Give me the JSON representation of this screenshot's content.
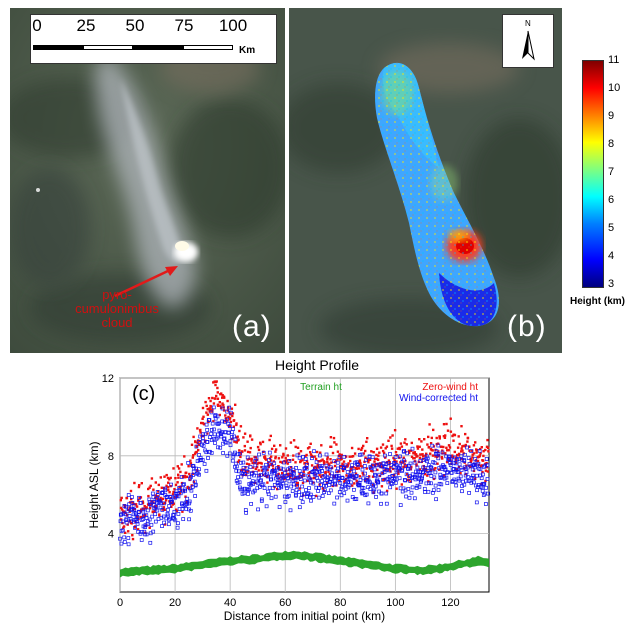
{
  "panel_a": {
    "label": "(a)",
    "annotation": [
      "pyro-",
      "cumulonimbus",
      "cloud"
    ],
    "scalebar": {
      "ticks": [
        "0",
        "25",
        "50",
        "75",
        "100"
      ],
      "unit": "Km"
    }
  },
  "panel_b": {
    "label": "(b)",
    "north": "N"
  },
  "colorbar": {
    "ticks": [
      "11",
      "10",
      "9",
      "8",
      "7",
      "6",
      "5",
      "4",
      "3"
    ],
    "label": "Height (km)",
    "min": 3,
    "max": 11
  },
  "chart_data": {
    "type": "scatter",
    "title": "Height Profile",
    "panel_label": "(c)",
    "xlabel": "Distance from initial point (km)",
    "ylabel": "Height ASL (km)",
    "xlim": [
      0,
      134
    ],
    "ylim": [
      1,
      12
    ],
    "xticks": [
      0,
      20,
      40,
      60,
      80,
      100,
      120
    ],
    "yticks": [
      4,
      8,
      12
    ],
    "grid": true,
    "legend": "top-right",
    "series": [
      {
        "name": "Terrain ht",
        "color": "#22a022",
        "x": [
          0,
          10,
          20,
          30,
          40,
          50,
          60,
          65,
          70,
          80,
          90,
          100,
          110,
          120,
          130,
          134
        ],
        "y": [
          2.0,
          2.1,
          2.2,
          2.4,
          2.6,
          2.7,
          2.9,
          2.9,
          2.8,
          2.6,
          2.4,
          2.2,
          2.1,
          2.3,
          2.6,
          2.5
        ]
      },
      {
        "name": "Zero-wind ht",
        "color": "#ee1111",
        "x": [
          0,
          10,
          20,
          25,
          30,
          35,
          40,
          45,
          50,
          60,
          70,
          80,
          90,
          100,
          110,
          120,
          130,
          134
        ],
        "y": [
          4.8,
          5.5,
          6.3,
          7.0,
          9.5,
          11.0,
          10.0,
          8.0,
          7.5,
          7.5,
          7.5,
          7.4,
          7.6,
          7.8,
          8.0,
          8.3,
          8.0,
          7.6
        ]
      },
      {
        "name": "Wind-corrected ht",
        "color": "#1111ee",
        "x": [
          0,
          10,
          20,
          25,
          30,
          35,
          40,
          45,
          50,
          60,
          70,
          80,
          90,
          100,
          110,
          120,
          130,
          134
        ],
        "y": [
          4.8,
          5.0,
          5.5,
          5.9,
          8.5,
          9.5,
          9.0,
          6.5,
          6.6,
          6.7,
          6.8,
          6.8,
          6.9,
          7.0,
          7.2,
          7.4,
          7.1,
          6.8
        ]
      }
    ]
  }
}
